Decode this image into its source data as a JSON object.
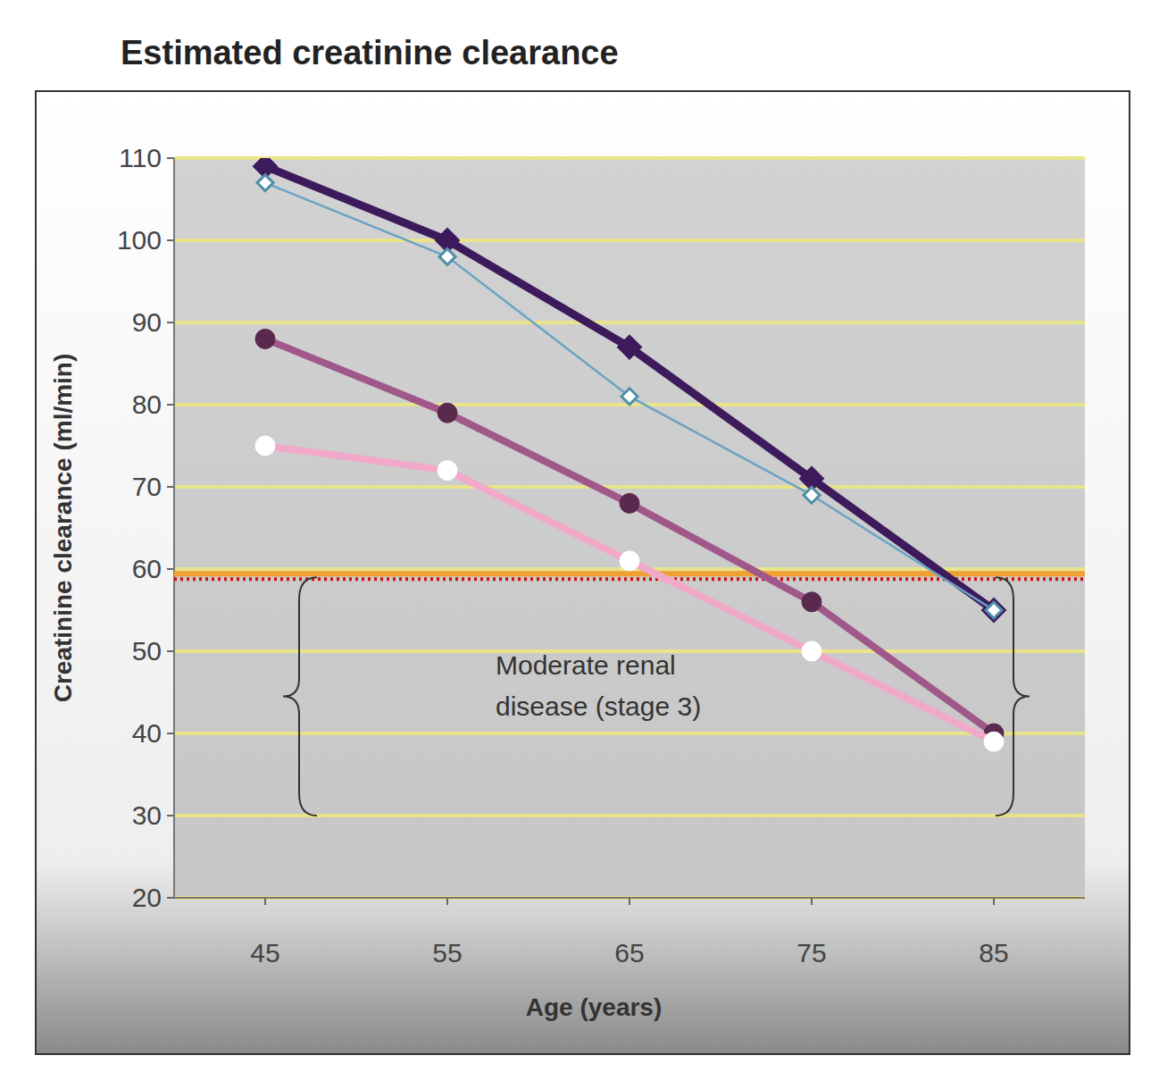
{
  "chart_data": {
    "type": "line",
    "title": "Estimated creatinine clearance",
    "x_label": "Age (years)",
    "y_label": "Creatinine clearance (ml/min)",
    "x": [
      45,
      55,
      65,
      75,
      85
    ],
    "xlim": [
      40,
      90
    ],
    "xticks": [
      45,
      55,
      65,
      75,
      85
    ],
    "ylim": [
      20,
      110
    ],
    "yticks": [
      20,
      30,
      40,
      50,
      60,
      70,
      80,
      90,
      100,
      110
    ],
    "grid": true,
    "series": [
      {
        "color": "#3d1a5c",
        "marker": "diamond",
        "line_style": "thick",
        "values": [
          109,
          100,
          87,
          71,
          55
        ]
      },
      {
        "color": "#6aa3c4",
        "marker": "open-diamond",
        "line_style": "thin",
        "values": [
          107,
          98,
          81,
          69,
          55
        ]
      },
      {
        "color": "#a0588a",
        "marker": "circle",
        "line_style": "thick",
        "values": [
          88,
          79,
          68,
          56,
          40
        ]
      },
      {
        "color": "#f2a9c9",
        "marker": "open-circle",
        "line_style": "thick",
        "values": [
          75,
          72,
          61,
          50,
          39
        ]
      }
    ],
    "reference_line": 59,
    "annotations": [
      {
        "lines": [
          "Moderate renal",
          "disease (stage 3)"
        ],
        "y_range": [
          30,
          59
        ]
      }
    ]
  }
}
